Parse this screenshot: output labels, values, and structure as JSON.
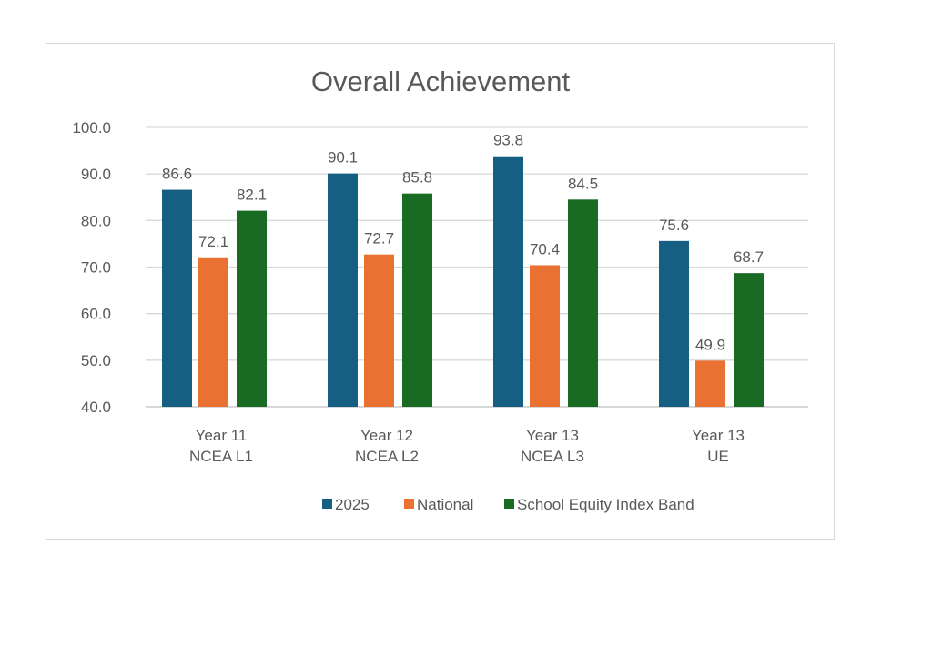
{
  "chart_data": {
    "type": "bar",
    "title": "Overall Achievement",
    "categories": [
      [
        "Year 11",
        "NCEA L1"
      ],
      [
        "Year 12",
        "NCEA L2"
      ],
      [
        "Year 13",
        "NCEA L3"
      ],
      [
        "Year 13",
        "UE"
      ]
    ],
    "series": [
      {
        "name": "2025",
        "color": "#156082",
        "values": [
          86.6,
          90.1,
          93.8,
          75.6
        ]
      },
      {
        "name": "National",
        "color": "#E97132",
        "values": [
          72.1,
          72.7,
          70.4,
          49.9
        ]
      },
      {
        "name": "School Equity Index Band",
        "color": "#196B24",
        "values": [
          82.1,
          85.8,
          84.5,
          68.7
        ]
      }
    ],
    "ylim": [
      40,
      100
    ],
    "yticks": [
      "40.0",
      "50.0",
      "60.0",
      "70.0",
      "80.0",
      "90.0",
      "100.0"
    ],
    "grid": true,
    "legend": "bottom",
    "xlabel": "",
    "ylabel": ""
  }
}
